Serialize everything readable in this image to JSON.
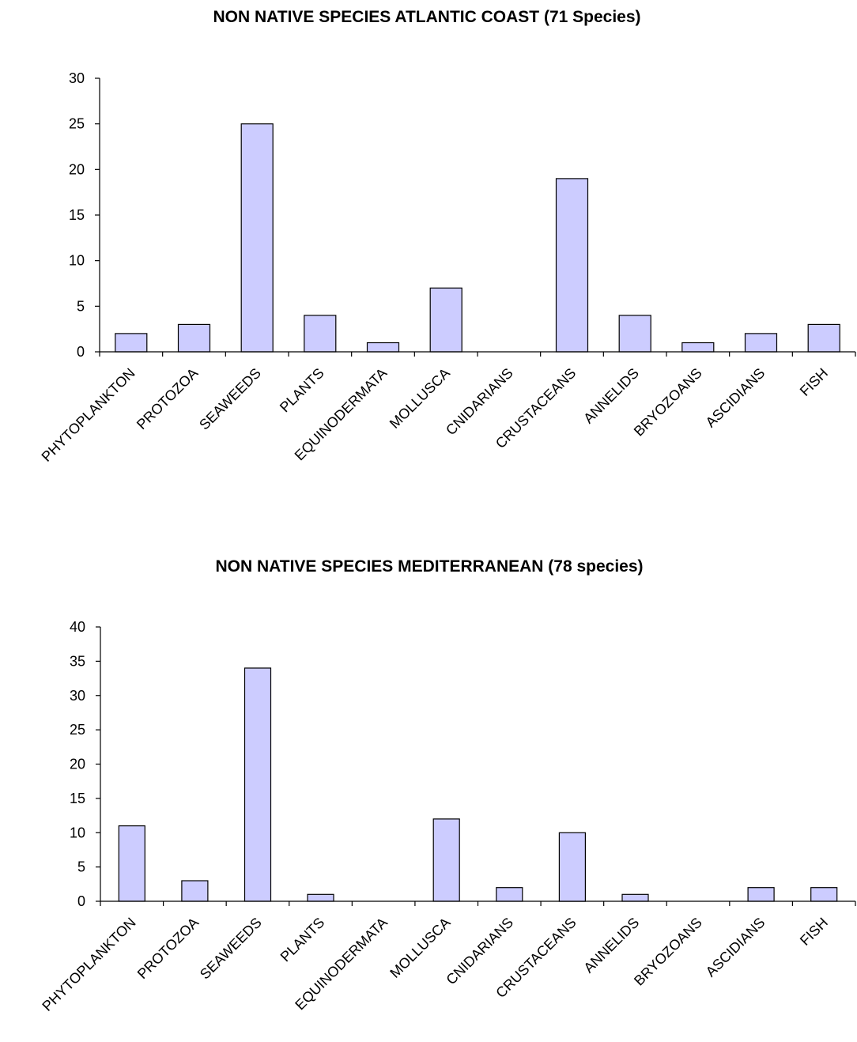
{
  "chart_data": [
    {
      "type": "bar",
      "title": "NON NATIVE SPECIES ATLANTIC COAST (71 Species)",
      "xlabel": "",
      "ylabel": "",
      "categories": [
        "PHYTOPLANKTON",
        "PROTOZOA",
        "SEAWEEDS",
        "PLANTS",
        "EQUINODERMATA",
        "MOLLUSCA",
        "CNIDARIANS",
        "CRUSTACEANS",
        "ANNELIDS",
        "BRYOZOANS",
        "ASCIDIANS",
        "FISH"
      ],
      "values": [
        2,
        3,
        25,
        4,
        1,
        7,
        0,
        19,
        4,
        1,
        2,
        3
      ],
      "ylim": [
        0,
        30
      ],
      "yticks": [
        0,
        5,
        10,
        15,
        20,
        25,
        30
      ],
      "grid": false,
      "legend": "none",
      "bar_color": "#ccccff"
    },
    {
      "type": "bar",
      "title": "NON NATIVE SPECIES MEDITERRANEAN (78 species)",
      "xlabel": "",
      "ylabel": "",
      "categories": [
        "PHYTOPLANKTON",
        "PROTOZOA",
        "SEAWEEDS",
        "PLANTS",
        "EQUINODERMATA",
        "MOLLUSCA",
        "CNIDARIANS",
        "CRUSTACEANS",
        "ANNELIDS",
        "BRYOZOANS",
        "ASCIDIANS",
        "FISH"
      ],
      "values": [
        11,
        3,
        34,
        1,
        0,
        12,
        2,
        10,
        1,
        0,
        2,
        2
      ],
      "ylim": [
        0,
        40
      ],
      "yticks": [
        0,
        5,
        10,
        15,
        20,
        25,
        30,
        35,
        40
      ],
      "grid": false,
      "legend": "none",
      "bar_color": "#ccccff"
    }
  ]
}
